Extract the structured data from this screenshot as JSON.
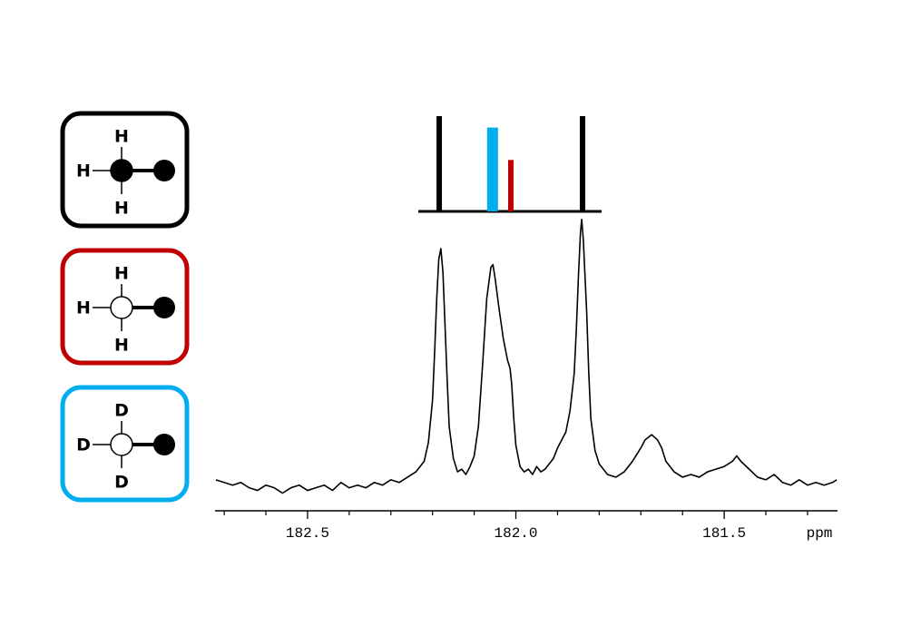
{
  "chart_data": {
    "type": "line",
    "color": "#000000",
    "xlabel": "ppm",
    "xlim": [
      182.722,
      181.228
    ],
    "xticks": [
      182.5,
      {
        "value": 182,
        "label": "182.0"
      },
      181.5
    ],
    "minor_xticks": [
      182.7,
      182.6,
      182.4,
      182.3,
      182.2,
      182.1,
      181.9,
      181.8,
      181.7,
      181.6,
      181.4,
      181.3
    ],
    "ylim": [
      -10,
      102
    ],
    "x": [
      182.72,
      182.7,
      182.68,
      182.66,
      182.64,
      182.62,
      182.6,
      182.58,
      182.56,
      182.54,
      182.52,
      182.5,
      182.48,
      182.46,
      182.44,
      182.42,
      182.4,
      182.38,
      182.36,
      182.34,
      182.32,
      182.3,
      182.28,
      182.26,
      182.24,
      182.22,
      182.21,
      182.2,
      182.195,
      182.19,
      182.185,
      182.18,
      182.175,
      182.17,
      182.165,
      182.16,
      182.15,
      182.14,
      182.13,
      182.12,
      182.11,
      182.1,
      182.09,
      182.08,
      182.07,
      182.06,
      182.055,
      182.05,
      182.04,
      182.03,
      182.02,
      182.014,
      182.01,
      182.005,
      182.0,
      181.99,
      181.98,
      181.97,
      181.96,
      181.95,
      181.94,
      181.93,
      181.92,
      181.91,
      181.9,
      181.88,
      181.87,
      181.86,
      181.855,
      181.85,
      181.845,
      181.842,
      181.838,
      181.83,
      181.825,
      181.82,
      181.81,
      181.8,
      181.79,
      181.78,
      181.76,
      181.74,
      181.72,
      181.7,
      181.69,
      181.674,
      181.66,
      181.65,
      181.64,
      181.62,
      181.6,
      181.58,
      181.56,
      181.54,
      181.52,
      181.5,
      181.48,
      181.47,
      181.46,
      181.44,
      181.42,
      181.4,
      181.38,
      181.36,
      181.34,
      181.32,
      181.3,
      181.28,
      181.26,
      181.24,
      181.23
    ],
    "values": [
      2,
      1,
      0,
      1,
      -1,
      -2,
      0,
      -1,
      -3,
      -1,
      0,
      -2,
      -1,
      0,
      -2,
      1,
      -1,
      0,
      -1,
      1,
      0,
      2,
      1,
      3,
      5,
      9,
      16,
      32,
      50,
      70,
      85,
      89,
      80,
      60,
      40,
      22,
      10,
      5,
      6,
      4,
      7,
      11,
      22,
      45,
      70,
      82,
      83,
      78,
      66,
      55,
      47,
      44,
      38,
      25,
      15,
      7,
      5,
      6,
      4,
      7,
      5,
      6,
      8,
      10,
      14,
      20,
      28,
      42,
      58,
      78,
      95,
      100,
      92,
      65,
      42,
      25,
      13,
      8,
      6,
      4,
      3,
      5,
      9,
      14,
      17,
      19,
      17,
      14,
      9,
      5,
      3,
      4,
      3,
      5,
      6,
      7,
      9,
      11,
      9,
      6,
      3,
      2,
      4,
      1,
      0,
      2,
      0,
      1,
      0,
      1,
      2
    ],
    "sticks": {
      "x": [
        182.184,
        182.056,
        182.012,
        181.84
      ],
      "values": [
        1.0,
        0.88,
        0.54,
        1.0
      ],
      "colors": [
        "#000000",
        "#00aeef",
        "#c00000",
        "#000000"
      ],
      "ylim": [
        0,
        1
      ]
    },
    "legend": [
      {
        "color": "#000000",
        "labeled": true,
        "atoms": [
          "H",
          "H",
          "H"
        ]
      },
      {
        "color": "#c00000",
        "labeled": false,
        "atoms": [
          "H",
          "H",
          "H"
        ]
      },
      {
        "color": "#00aeef",
        "labeled": false,
        "atoms": [
          "D",
          "D",
          "D"
        ]
      }
    ]
  }
}
